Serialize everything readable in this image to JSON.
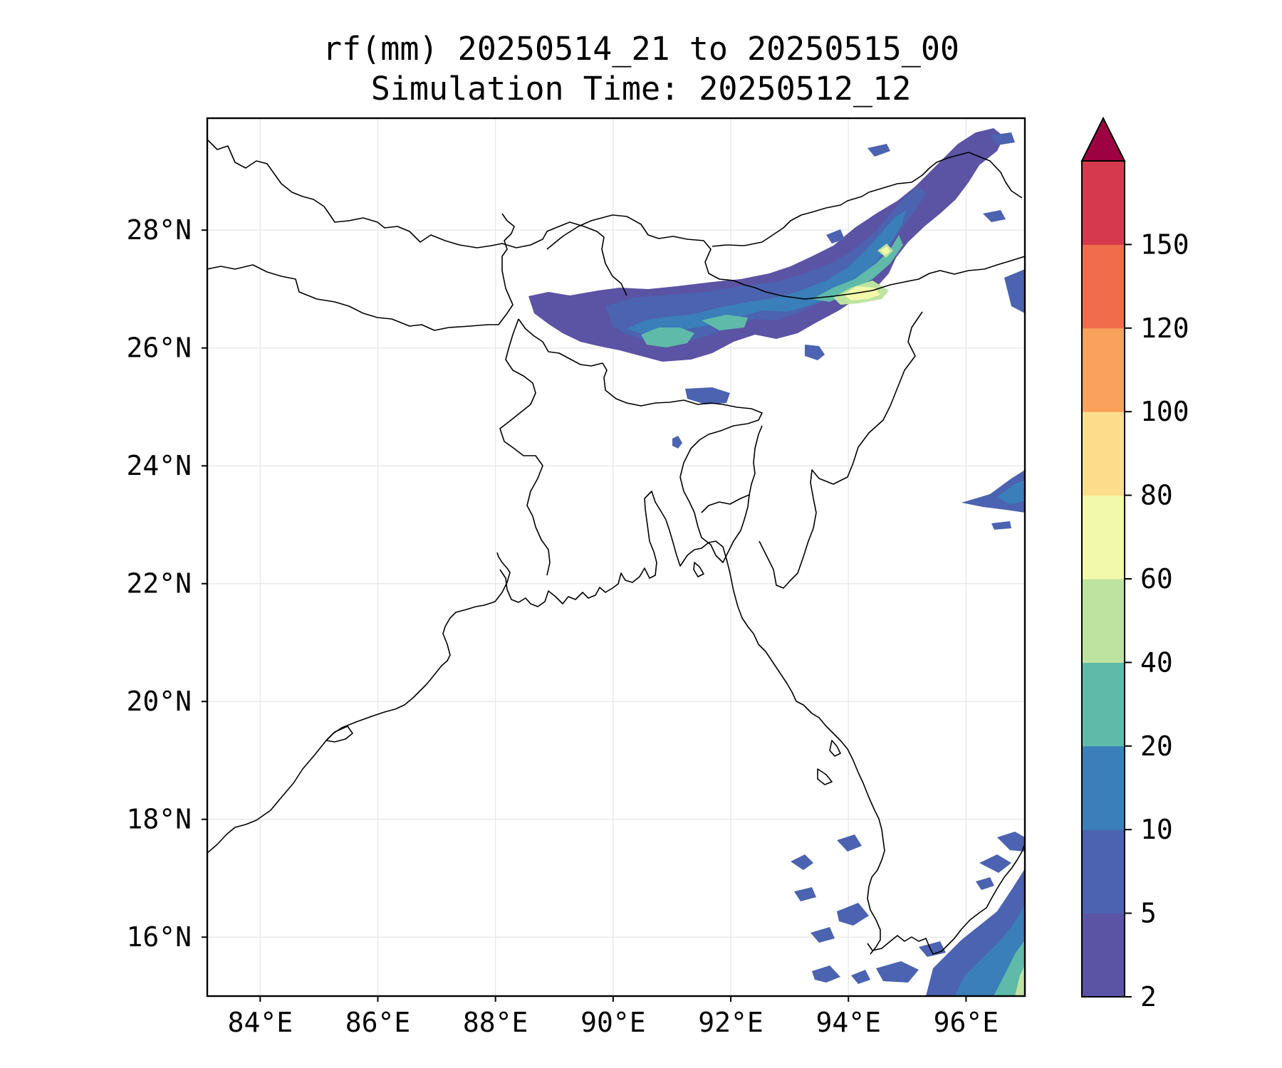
{
  "title": {
    "line1": "rf(mm) 20250514_21 to 20250515_00",
    "line2": "Simulation Time: 20250512_12"
  },
  "map": {
    "lon_range": [
      83.1,
      97.0
    ],
    "lat_range": [
      15.0,
      29.9
    ],
    "lon_ticks": [
      {
        "value": 84,
        "label": "84°E"
      },
      {
        "value": 86,
        "label": "86°E"
      },
      {
        "value": 88,
        "label": "88°E"
      },
      {
        "value": 90,
        "label": "90°E"
      },
      {
        "value": 92,
        "label": "92°E"
      },
      {
        "value": 94,
        "label": "94°E"
      },
      {
        "value": 96,
        "label": "96°E"
      }
    ],
    "lat_ticks": [
      {
        "value": 16,
        "label": "16°N"
      },
      {
        "value": 18,
        "label": "18°N"
      },
      {
        "value": 20,
        "label": "20°N"
      },
      {
        "value": 22,
        "label": "22°N"
      },
      {
        "value": 24,
        "label": "24°N"
      },
      {
        "value": 26,
        "label": "26°N"
      },
      {
        "value": 28,
        "label": "28°N"
      }
    ],
    "grid": true,
    "coastline_color": "#000000",
    "gridline_color": "#e6e6e6"
  },
  "colorbar": {
    "levels": [
      "2",
      "5",
      "10",
      "20",
      "40",
      "60",
      "80",
      "100",
      "120",
      "150"
    ],
    "colors": [
      "#5b53a4",
      "#4b63b0",
      "#3a7fb9",
      "#5fbaa9",
      "#bde3a0",
      "#f3f9ab",
      "#fcdd8b",
      "#f9a25b",
      "#f06c4a",
      "#d4394d"
    ],
    "extend_max_color": "#9d0142"
  },
  "rainfall_colors": {
    "c2_5": "#5b53a4",
    "c5_10": "#4b63b0",
    "c10_20": "#3a7fb9",
    "c20_40": "#5fbaa9",
    "c40_60": "#bde3a0",
    "c60_80": "#f3f9ab"
  }
}
